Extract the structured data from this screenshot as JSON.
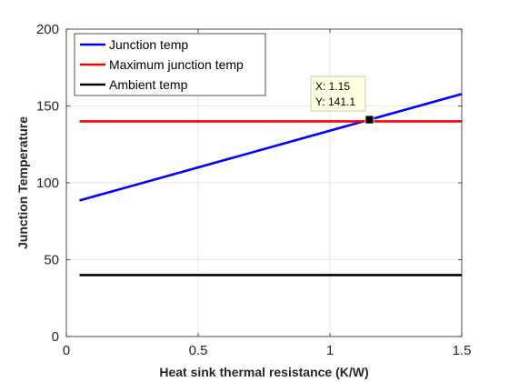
{
  "chart_data": {
    "type": "line",
    "title": "",
    "xlabel": "Heat sink thermal resistance (K/W)",
    "ylabel": "Junction Temperature",
    "xlim": [
      0,
      1.5
    ],
    "ylim": [
      0,
      200
    ],
    "xticks": [
      0,
      0.5,
      1,
      1.5
    ],
    "xtick_labels": [
      "0",
      "0.5",
      "1",
      "1.5"
    ],
    "yticks": [
      0,
      50,
      100,
      150,
      200
    ],
    "ytick_labels": [
      "0",
      "50",
      "100",
      "150",
      "200"
    ],
    "grid": true,
    "legend_position": "top-left",
    "series": [
      {
        "name": "Junction temp",
        "color": "#0000ff",
        "x": [
          0.05,
          1.5
        ],
        "y": [
          88.5,
          157.8
        ]
      },
      {
        "name": "Maximum junction temp",
        "color": "#ff0000",
        "x": [
          0.05,
          1.5
        ],
        "y": [
          140,
          140
        ]
      },
      {
        "name": "Ambient temp",
        "color": "#000000",
        "x": [
          0.05,
          1.5
        ],
        "y": [
          40,
          40
        ]
      }
    ],
    "datatip": {
      "x": 1.15,
      "y": 141.1,
      "x_text": "X: 1.15",
      "y_text": "Y: 141.1"
    }
  }
}
